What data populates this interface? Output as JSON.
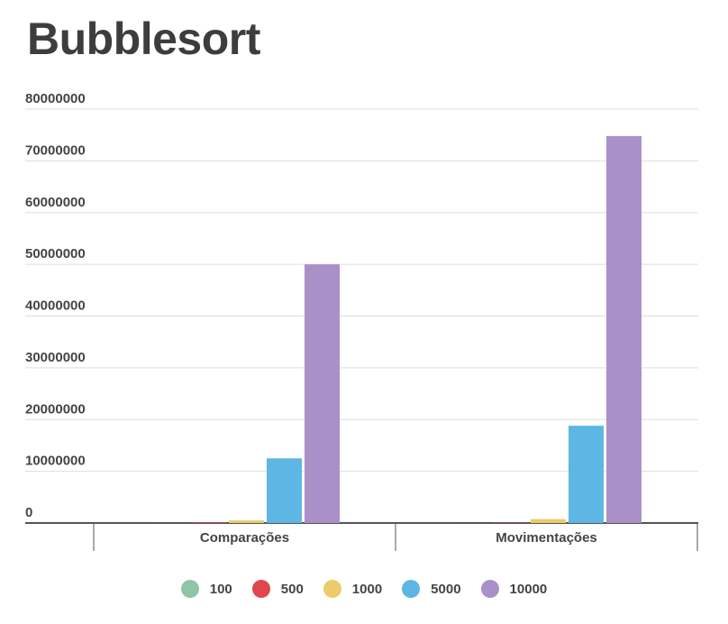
{
  "title": "Bubblesort",
  "chart_data": {
    "type": "bar",
    "categories": [
      "Comparações",
      "Movimentações"
    ],
    "series": [
      {
        "name": "100",
        "color": "#8fc5a7",
        "values": [
          4950,
          2500
        ]
      },
      {
        "name": "500",
        "color": "#e0474c",
        "values": [
          124750,
          62000
        ]
      },
      {
        "name": "1000",
        "color": "#eccb6b",
        "values": [
          499500,
          750000
        ]
      },
      {
        "name": "5000",
        "color": "#5db6e4",
        "values": [
          12497500,
          18800000
        ]
      },
      {
        "name": "10000",
        "color": "#aa90c8",
        "values": [
          49995000,
          74800000
        ]
      }
    ],
    "ylim": [
      0,
      80000000
    ],
    "yticks": [
      "0",
      "10000000",
      "20000000",
      "30000000",
      "40000000",
      "50000000",
      "60000000",
      "70000000",
      "80000000"
    ],
    "grid": true,
    "legend_position": "bottom",
    "xlabel": "",
    "ylabel": ""
  }
}
